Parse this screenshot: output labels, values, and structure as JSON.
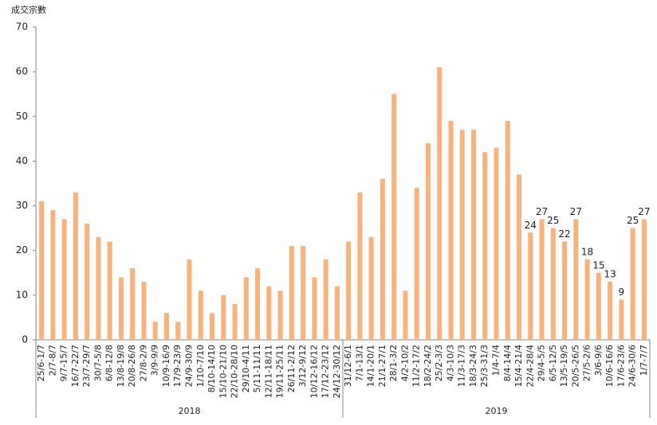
{
  "chart_data": {
    "type": "bar",
    "y_label": "成交宗數",
    "color": "#f9b27a",
    "ylim": [
      0,
      70
    ],
    "yticks": [
      0,
      10,
      20,
      30,
      40,
      50,
      60,
      70
    ],
    "groups": [
      {
        "name": "2018",
        "categories": [
          "25/6-1/7",
          "2/7-8/7",
          "9/7-15/7",
          "16/7-22/7",
          "23/7-29/7",
          "30/7-5/8",
          "6/8-12/8",
          "13/8-19/8",
          "20/8-26/8",
          "27/8-2/9",
          "3/9-9/9",
          "10/9-16/9",
          "17/9-23/9",
          "24/9-30/9",
          "1/10-7/10",
          "8/10-14/10",
          "15/10-21/10",
          "22/10-28/10",
          "29/10-4/11",
          "5/11-11/11",
          "12/11-18/11",
          "19/11-25/11",
          "26/11-2/12",
          "3/12-9/12",
          "10/12-16/12",
          "17/12-23/12",
          "24/12-30/12"
        ],
        "values": [
          31,
          29,
          27,
          33,
          26,
          23,
          22,
          14,
          16,
          13,
          4,
          6,
          4,
          18,
          11,
          6,
          10,
          8,
          14,
          16,
          12,
          11,
          21,
          21,
          14,
          18,
          12
        ],
        "show_value_labels": [
          false,
          false,
          false,
          false,
          false,
          false,
          false,
          false,
          false,
          false,
          false,
          false,
          false,
          false,
          false,
          false,
          false,
          false,
          false,
          false,
          false,
          false,
          false,
          false,
          false,
          false,
          false
        ]
      },
      {
        "name": "2019",
        "categories": [
          "31/12-6/1",
          "7/1-13/1",
          "14/1-20/1",
          "21/1-27/1",
          "28/1-3/2",
          "4/2-10/2",
          "11/2-17/2",
          "18/2-24/2",
          "25/2-3/3",
          "4/3-10/3",
          "11/3-17/3",
          "18/3-24/3",
          "25/3-31/3",
          "1/4-7/4",
          "8/4-14/4",
          "15/4-21/4",
          "22/4-28/4",
          "29/4-5/5",
          "6/5-12/5",
          "13/5-19/5",
          "20/5-26/5",
          "27/5-2/6",
          "3/6-9/6",
          "10/6-16/6",
          "17/6-23/6",
          "24/6-30/6",
          "1/7-7/7"
        ],
        "values": [
          22,
          33,
          23,
          36,
          55,
          11,
          34,
          44,
          61,
          49,
          47,
          47,
          42,
          43,
          49,
          37,
          24,
          27,
          25,
          22,
          27,
          18,
          15,
          13,
          9,
          25,
          27
        ],
        "show_value_labels": [
          false,
          false,
          false,
          false,
          false,
          false,
          false,
          false,
          false,
          false,
          false,
          false,
          false,
          false,
          false,
          false,
          true,
          true,
          true,
          true,
          true,
          true,
          true,
          true,
          true,
          true,
          true
        ]
      }
    ]
  }
}
